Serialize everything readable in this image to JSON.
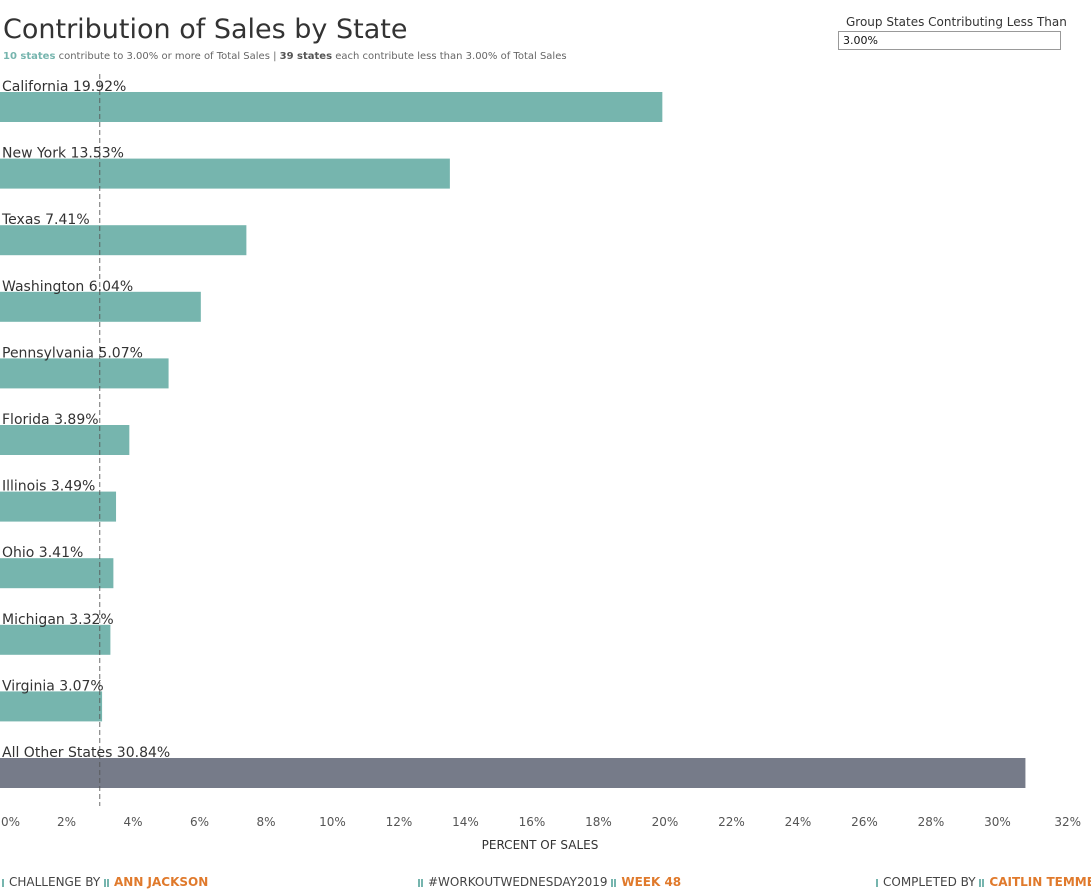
{
  "title": "Contribution of Sales by State",
  "subtitle": {
    "count_above": "10 states",
    "text_above": " contribute to 3.00% or more of Total Sales | ",
    "count_below": "39 states",
    "text_below": " each contribute less than 3.00% of Total Sales"
  },
  "parameter": {
    "label": "Group States Contributing Less Than",
    "value": "3.00%"
  },
  "chart_data": {
    "type": "bar",
    "orientation": "horizontal",
    "categories": [
      "California",
      "New York",
      "Texas",
      "Washington",
      "Pennsylvania",
      "Florida",
      "Illinois",
      "Ohio",
      "Michigan",
      "Virginia",
      "All Other States"
    ],
    "values": [
      19.92,
      13.53,
      7.41,
      6.04,
      5.07,
      3.89,
      3.49,
      3.41,
      3.32,
      3.07,
      30.84
    ],
    "labels": [
      "California 19.92%",
      "New York 13.53%",
      "Texas 7.41%",
      "Washington 6.04%",
      "Pennsylvania 5.07%",
      "Florida 3.89%",
      "Illinois 3.49%",
      "Ohio 3.41%",
      "Michigan 3.32%",
      "Virginia 3.07%",
      "All Other States 30.84%"
    ],
    "colors": [
      "#76b5ae",
      "#76b5ae",
      "#76b5ae",
      "#76b5ae",
      "#76b5ae",
      "#76b5ae",
      "#76b5ae",
      "#76b5ae",
      "#76b5ae",
      "#76b5ae",
      "#767b89"
    ],
    "threshold": 3.0,
    "xlabel": "PERCENT OF SALES",
    "xlim": [
      0,
      32
    ],
    "xticks": [
      0,
      2,
      4,
      6,
      8,
      10,
      12,
      14,
      16,
      18,
      20,
      22,
      24,
      26,
      28,
      30,
      32
    ],
    "xtick_labels": [
      "0%",
      "2%",
      "4%",
      "6%",
      "8%",
      "10%",
      "12%",
      "14%",
      "16%",
      "18%",
      "20%",
      "22%",
      "24%",
      "26%",
      "28%",
      "30%",
      "32%"
    ],
    "grid": false
  },
  "footer": {
    "challenge_label": "CHALLENGE BY",
    "challenge_name": "ANN JACKSON",
    "hashtag": "#WORKOUTWEDNESDAY2019",
    "week": "WEEK 48",
    "completed_label": "COMPLETED BY",
    "completed_name": "CAITLIN TEMME"
  }
}
